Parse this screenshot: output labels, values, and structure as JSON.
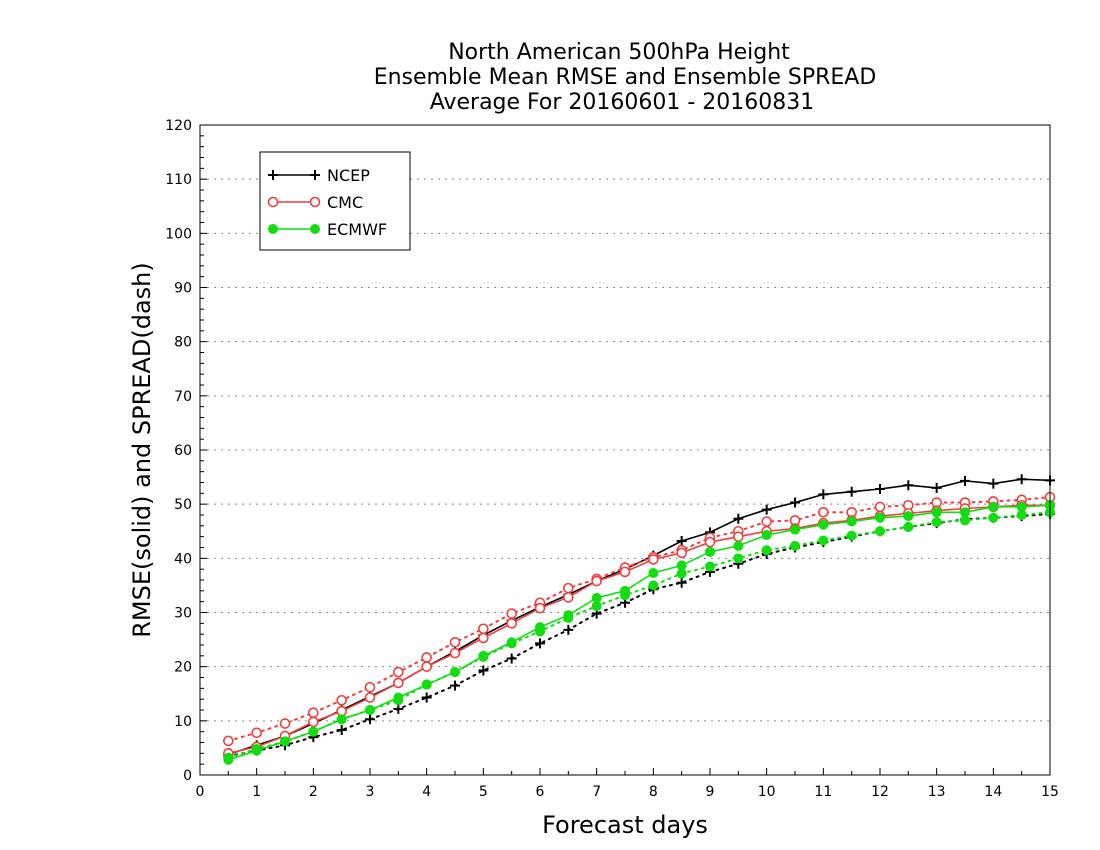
{
  "chart_data": {
    "type": "line",
    "title": [
      "North American 500hPa Height",
      "Ensemble Mean RMSE and Ensemble SPREAD",
      "Average For 20160601 - 20160831"
    ],
    "xlabel": "Forecast days",
    "ylabel": "RMSE(solid) and SPREAD(dash)",
    "xlim": [
      0,
      15
    ],
    "ylim": [
      0,
      120
    ],
    "xticks": [
      0,
      1,
      2,
      3,
      4,
      5,
      6,
      7,
      8,
      9,
      10,
      11,
      12,
      13,
      14,
      15
    ],
    "yticks": [
      0,
      10,
      20,
      30,
      40,
      50,
      60,
      70,
      80,
      90,
      100,
      110,
      120
    ],
    "grid": true,
    "legend_position": "top-left",
    "x": [
      0.5,
      1,
      1.5,
      2,
      2.5,
      3,
      3.5,
      4,
      4.5,
      5,
      5.5,
      6,
      6.5,
      7,
      7.5,
      8,
      8.5,
      9,
      9.5,
      10,
      10.5,
      11,
      11.5,
      12,
      12.5,
      13,
      13.5,
      14,
      14.5,
      15
    ],
    "series": [
      {
        "name": "NCEP",
        "color": "#000000",
        "marker": "plus",
        "rmse": [
          3.8,
          5.5,
          7.2,
          9.5,
          12.0,
          14.5,
          17.0,
          20.0,
          22.8,
          25.8,
          28.5,
          31.0,
          33.3,
          35.8,
          38.0,
          40.5,
          43.2,
          44.8,
          47.3,
          49.0,
          50.3,
          51.8,
          52.3,
          52.8,
          53.5,
          53.0,
          54.3,
          53.8,
          54.6,
          54.4
        ],
        "spread": [
          3.5,
          4.5,
          5.5,
          7.0,
          8.3,
          10.3,
          12.2,
          14.3,
          16.5,
          19.3,
          21.5,
          24.3,
          26.8,
          29.8,
          31.8,
          34.3,
          35.5,
          37.5,
          39.0,
          40.8,
          42.0,
          43.0,
          44.0,
          45.0,
          45.8,
          46.5,
          47.2,
          47.5,
          47.8,
          48.2
        ]
      },
      {
        "name": "CMC",
        "color": "#ee3f3f",
        "marker": "open-circle",
        "rmse": [
          4.0,
          5.2,
          7.2,
          9.8,
          11.8,
          14.3,
          17.0,
          20.0,
          22.5,
          25.3,
          28.0,
          30.8,
          32.8,
          35.8,
          37.5,
          39.8,
          41.0,
          43.0,
          44.0,
          45.0,
          45.5,
          46.5,
          47.0,
          47.8,
          48.3,
          48.8,
          49.2,
          49.5,
          49.8,
          49.8
        ],
        "spread": [
          6.3,
          7.8,
          9.5,
          11.5,
          13.8,
          16.2,
          19.0,
          21.7,
          24.5,
          27.0,
          29.8,
          31.8,
          34.5,
          36.2,
          38.3,
          40.2,
          41.5,
          43.8,
          45.0,
          46.8,
          47.0,
          48.5,
          48.5,
          49.5,
          49.8,
          50.3,
          50.3,
          50.5,
          50.8,
          51.3
        ]
      },
      {
        "name": "ECMWF",
        "color": "#11dd11",
        "marker": "filled-circle",
        "rmse": [
          2.8,
          4.5,
          6.2,
          8.0,
          10.3,
          12.0,
          14.3,
          16.7,
          19.0,
          22.0,
          24.5,
          27.3,
          29.5,
          32.7,
          34.0,
          37.3,
          38.7,
          41.2,
          42.3,
          44.3,
          45.3,
          46.2,
          46.8,
          47.5,
          47.8,
          48.5,
          48.5,
          49.5,
          49.5,
          49.8
        ],
        "spread": [
          3.2,
          4.8,
          6.2,
          8.0,
          10.3,
          12.0,
          13.8,
          16.7,
          19.0,
          21.8,
          24.3,
          26.5,
          29.0,
          31.2,
          33.2,
          35.0,
          37.2,
          38.5,
          40.0,
          41.5,
          42.3,
          43.3,
          44.2,
          45.0,
          45.8,
          46.7,
          47.0,
          47.5,
          48.0,
          48.5
        ]
      }
    ]
  }
}
